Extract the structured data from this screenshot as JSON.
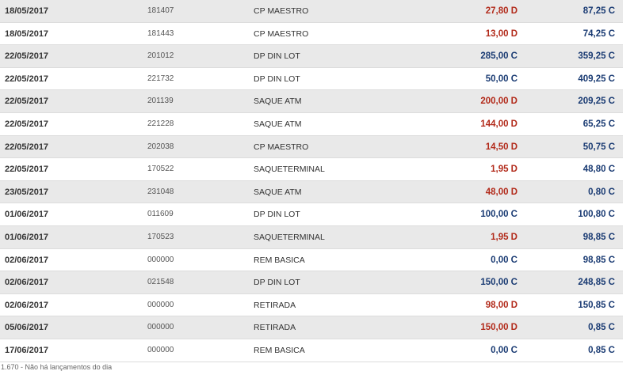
{
  "colors": {
    "debit": "#b22a1a",
    "credit": "#1a3b73",
    "row_alt": "#e9e9e9",
    "row": "#ffffff"
  },
  "rows": [
    {
      "date": "18/05/2017",
      "doc": "181407",
      "desc": "CP MAESTRO",
      "amount": "27,80 D",
      "type": "D",
      "balance": "87,25 C"
    },
    {
      "date": "18/05/2017",
      "doc": "181443",
      "desc": "CP MAESTRO",
      "amount": "13,00 D",
      "type": "D",
      "balance": "74,25 C"
    },
    {
      "date": "22/05/2017",
      "doc": "201012",
      "desc": "DP DIN LOT",
      "amount": "285,00 C",
      "type": "C",
      "balance": "359,25 C"
    },
    {
      "date": "22/05/2017",
      "doc": "221732",
      "desc": "DP DIN LOT",
      "amount": "50,00 C",
      "type": "C",
      "balance": "409,25 C"
    },
    {
      "date": "22/05/2017",
      "doc": "201139",
      "desc": "SAQUE ATM",
      "amount": "200,00 D",
      "type": "D",
      "balance": "209,25 C"
    },
    {
      "date": "22/05/2017",
      "doc": "221228",
      "desc": "SAQUE ATM",
      "amount": "144,00 D",
      "type": "D",
      "balance": "65,25 C"
    },
    {
      "date": "22/05/2017",
      "doc": "202038",
      "desc": "CP MAESTRO",
      "amount": "14,50 D",
      "type": "D",
      "balance": "50,75 C"
    },
    {
      "date": "22/05/2017",
      "doc": "170522",
      "desc": "SAQUETERMINAL",
      "amount": "1,95 D",
      "type": "D",
      "balance": "48,80 C"
    },
    {
      "date": "23/05/2017",
      "doc": "231048",
      "desc": "SAQUE ATM",
      "amount": "48,00 D",
      "type": "D",
      "balance": "0,80 C"
    },
    {
      "date": "01/06/2017",
      "doc": "011609",
      "desc": "DP DIN LOT",
      "amount": "100,00 C",
      "type": "C",
      "balance": "100,80 C"
    },
    {
      "date": "01/06/2017",
      "doc": "170523",
      "desc": "SAQUETERMINAL",
      "amount": "1,95 D",
      "type": "D",
      "balance": "98,85 C"
    },
    {
      "date": "02/06/2017",
      "doc": "000000",
      "desc": "REM BASICA",
      "amount": "0,00 C",
      "type": "C",
      "balance": "98,85 C"
    },
    {
      "date": "02/06/2017",
      "doc": "021548",
      "desc": "DP DIN LOT",
      "amount": "150,00 C",
      "type": "C",
      "balance": "248,85 C"
    },
    {
      "date": "02/06/2017",
      "doc": "000000",
      "desc": "RETIRADA",
      "amount": "98,00 D",
      "type": "D",
      "balance": "150,85 C"
    },
    {
      "date": "05/06/2017",
      "doc": "000000",
      "desc": "RETIRADA",
      "amount": "150,00 D",
      "type": "D",
      "balance": "0,85 C"
    },
    {
      "date": "17/06/2017",
      "doc": "000000",
      "desc": "REM BASICA",
      "amount": "0,00 C",
      "type": "C",
      "balance": "0,85 C"
    }
  ],
  "footnote": "1.670 - Não há lançamentos do dia"
}
